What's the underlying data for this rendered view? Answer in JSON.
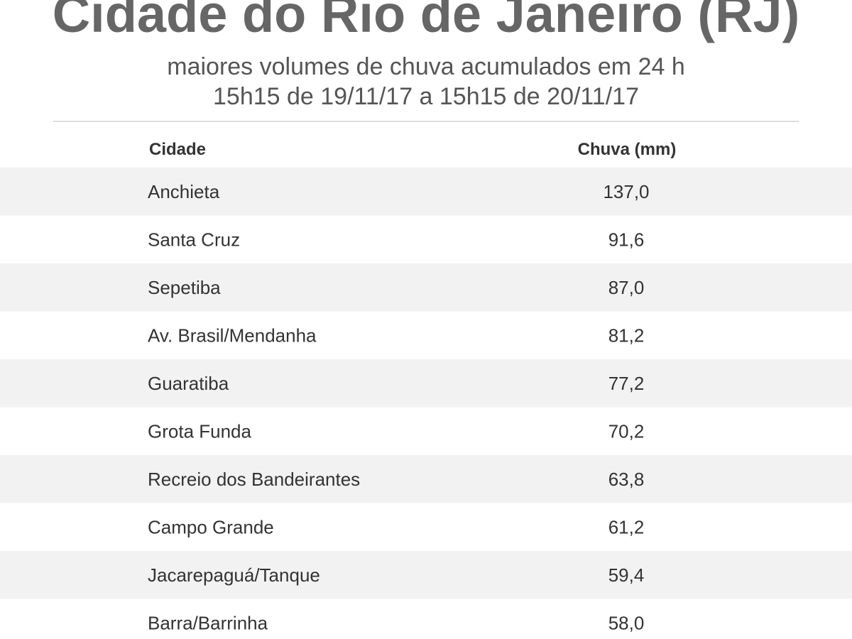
{
  "header": {
    "title": "Cidade do Rio de Janeiro (RJ)",
    "subtitle": [
      "maiores volumes de chuva acumulados em 24 h",
      "15h15 de 19/11/17 a 15h15 de 20/11/17"
    ]
  },
  "table": {
    "columns": [
      "Cidade",
      "Chuva (mm)"
    ],
    "rows": [
      [
        "Anchieta",
        "137,0"
      ],
      [
        "Santa Cruz",
        "91,6"
      ],
      [
        "Sepetiba",
        "87,0"
      ],
      [
        "Av. Brasil/Mendanha",
        "81,2"
      ],
      [
        "Guaratiba",
        "77,2"
      ],
      [
        "Grota Funda",
        "70,2"
      ],
      [
        "Recreio dos Bandeirantes",
        "63,8"
      ],
      [
        "Campo Grande",
        "61,2"
      ],
      [
        "Jacarepaguá/Tanque",
        "59,4"
      ],
      [
        "Barra/Barrinha",
        "58,0"
      ]
    ]
  }
}
